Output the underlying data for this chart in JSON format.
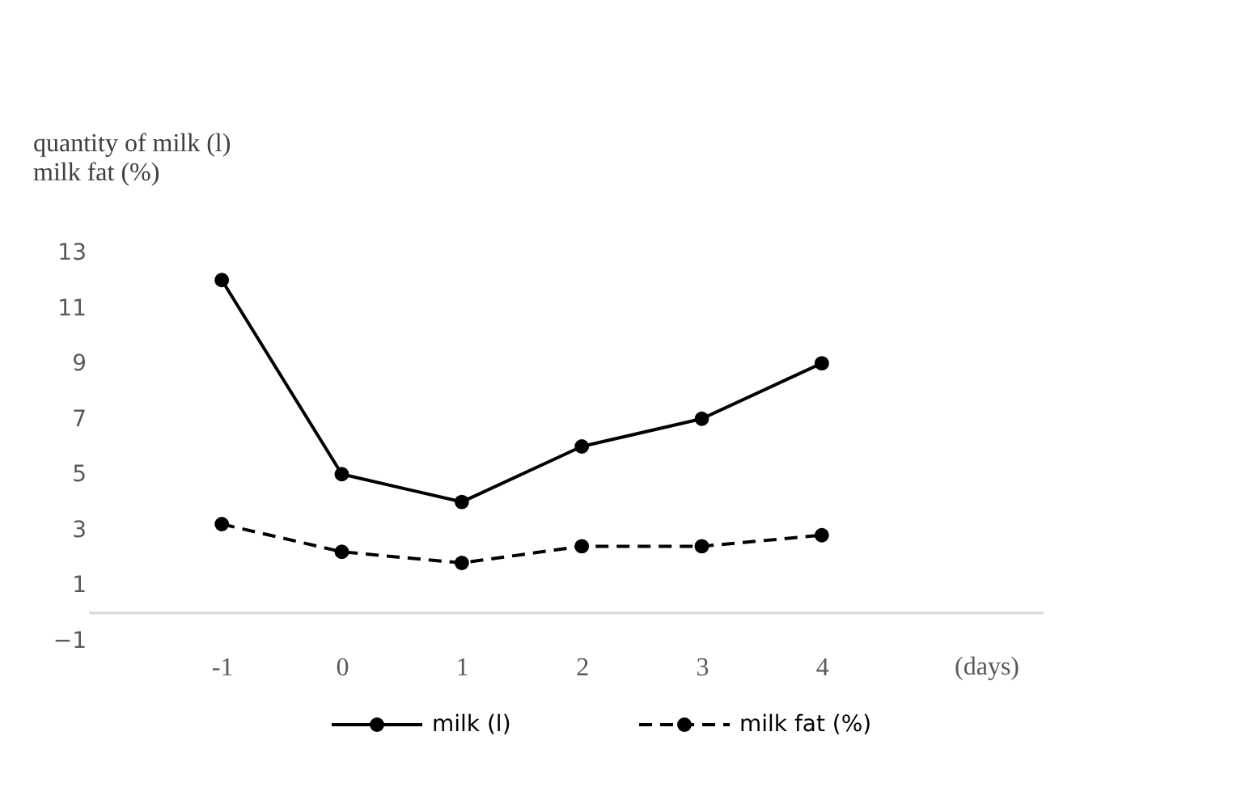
{
  "chart_data": {
    "type": "line",
    "ylabel": "quantity of milk (l)\n milk fat (%)",
    "xlabel": "(days)",
    "categories": [
      "-1",
      "0",
      "1",
      "2",
      "3",
      "4"
    ],
    "series": [
      {
        "name": "milk (l)",
        "color": "#000000",
        "values": [
          12,
          5,
          4,
          6,
          7,
          9
        ],
        "line_style": "solid"
      },
      {
        "name": "milk fat (%)",
        "color": "#000000",
        "values": [
          3.2,
          2.2,
          1.8,
          2.4,
          2.4,
          2.8
        ],
        "line_style": "dashed"
      }
    ],
    "ylim": [
      -1,
      13
    ],
    "yticks": [
      -1,
      1,
      3,
      5,
      7,
      9,
      11,
      13
    ],
    "grid": false,
    "legend": "bottom",
    "marker": "circle"
  }
}
